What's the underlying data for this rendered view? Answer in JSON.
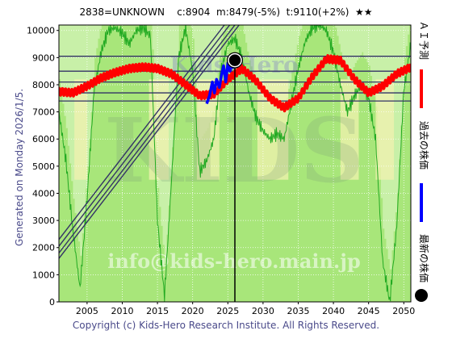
{
  "header": {
    "title": "2838=UNKNOWN    c:8904  m:8479(-5%)  t:9110(+2%)  ★★"
  },
  "side": {
    "generated": "Generated on Monday 2026/1/5."
  },
  "footer": {
    "copyright": "Copyright (c) Kids-Hero Research Institute. All Rights Reserved."
  },
  "watermark": {
    "top": "Kids-Hero",
    "middle": "KIDS",
    "bottom": "info@kids-hero.main.jp"
  },
  "legend": {
    "items": [
      {
        "label": "ＡＩ予測",
        "color": "#ff0000"
      },
      {
        "label": "過去の株価",
        "color": "#0000ff"
      },
      {
        "label": "最新の株価",
        "color": "#000000"
      }
    ]
  },
  "colors": {
    "plot_bg": "#a8e67a",
    "band": "#f2f2b0",
    "trend": "#333366",
    "level": "#333366",
    "ai": "#ff0000",
    "past": "#0000ff",
    "green_line": "#22aa22"
  },
  "chart_data": {
    "type": "line",
    "xlim": [
      2001,
      2051
    ],
    "ylim": [
      0,
      10200
    ],
    "xticks": [
      2005,
      2010,
      2015,
      2020,
      2025,
      2030,
      2035,
      2040,
      2045,
      2050
    ],
    "yticks": [
      0,
      1000,
      2000,
      3000,
      4000,
      5000,
      6000,
      7000,
      8000,
      9000,
      10000
    ],
    "grid": true,
    "current": {
      "x": 2026.0,
      "y": 8904
    },
    "vertical_marker_x": 2026.0,
    "horizontal_levels": [
      9050,
      8500,
      8100,
      7700,
      7400
    ],
    "trend_channel": {
      "slope_per_year": 336,
      "intercepts_at_2001": [
        2300,
        2050,
        1800,
        1600
      ]
    },
    "series": [
      {
        "name": "ＡＩ予測",
        "x": [
          2001,
          2003,
          2005,
          2007,
          2009,
          2011,
          2013,
          2015,
          2017,
          2019,
          2021,
          2023,
          2025,
          2027,
          2029,
          2031,
          2033,
          2035,
          2037,
          2039,
          2041,
          2043,
          2045,
          2047,
          2049,
          2051
        ],
        "y": [
          7750,
          7700,
          7950,
          8250,
          8450,
          8600,
          8650,
          8600,
          8400,
          8000,
          7600,
          7650,
          8200,
          8600,
          8150,
          7500,
          7150,
          7500,
          8300,
          8950,
          8900,
          8200,
          7700,
          7950,
          8400,
          8650
        ]
      },
      {
        "name": "過去の株価",
        "x": [
          2022.0,
          2022.4,
          2022.8,
          2023.1,
          2023.4,
          2023.8,
          2024.1,
          2024.4,
          2024.7,
          2025.0,
          2025.3,
          2025.6,
          2025.9
        ],
        "y": [
          7300,
          7600,
          8100,
          7700,
          8200,
          7900,
          8350,
          8700,
          8100,
          8800,
          8500,
          8750,
          8600
        ]
      },
      {
        "name": "green",
        "x": [
          2001,
          2002,
          2003,
          2004,
          2005,
          2006,
          2007,
          2008,
          2009,
          2010,
          2011,
          2012,
          2013,
          2014,
          2015,
          2016,
          2017,
          2018,
          2019,
          2020,
          2021,
          2022,
          2023,
          2024,
          2025,
          2026,
          2027,
          2028,
          2029,
          2030,
          2031,
          2032,
          2033,
          2034,
          2035,
          2036,
          2037,
          2038,
          2039,
          2040,
          2041,
          2042,
          2043,
          2044,
          2045,
          2046,
          2047,
          2048,
          2049,
          2050,
          2051
        ],
        "y": [
          7000,
          5200,
          2600,
          500,
          3800,
          7800,
          9200,
          10000,
          10100,
          9900,
          9500,
          10000,
          10100,
          9800,
          3000,
          200,
          4500,
          9000,
          10100,
          8500,
          4800,
          5200,
          6000,
          8500,
          9500,
          9700,
          9000,
          7700,
          6800,
          6300,
          6000,
          6200,
          6000,
          7300,
          8600,
          9600,
          10100,
          10200,
          10000,
          9200,
          8000,
          7000,
          7600,
          8000,
          7500,
          6000,
          1500,
          0,
          2800,
          7800,
          9500
        ]
      }
    ]
  }
}
